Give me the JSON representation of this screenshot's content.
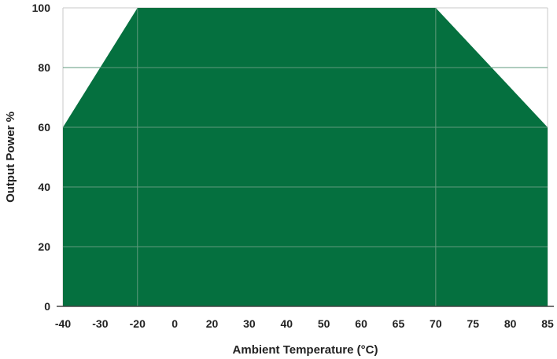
{
  "chart_data": {
    "type": "area",
    "title": "",
    "xlabel": "Ambient Temperature (°C)",
    "ylabel": "Output Power %",
    "x_ticks": [
      "-40",
      "-30",
      "-20",
      "0",
      "20",
      "30",
      "40",
      "50",
      "60",
      "65",
      "70",
      "75",
      "80",
      "85"
    ],
    "y_ticks": [
      "0",
      "20",
      "40",
      "60",
      "80",
      "100"
    ],
    "ylim": [
      0,
      100
    ],
    "grid": true,
    "legend": "none",
    "series": [
      {
        "x": [
          "-40",
          "-20",
          "70",
          "85"
        ],
        "values": [
          60,
          100,
          100,
          60
        ]
      }
    ],
    "colors": {
      "fill": "#05703F",
      "grid": "#c8c8c8",
      "inner_grid": "#5f9a7c",
      "text": "#222222"
    }
  }
}
